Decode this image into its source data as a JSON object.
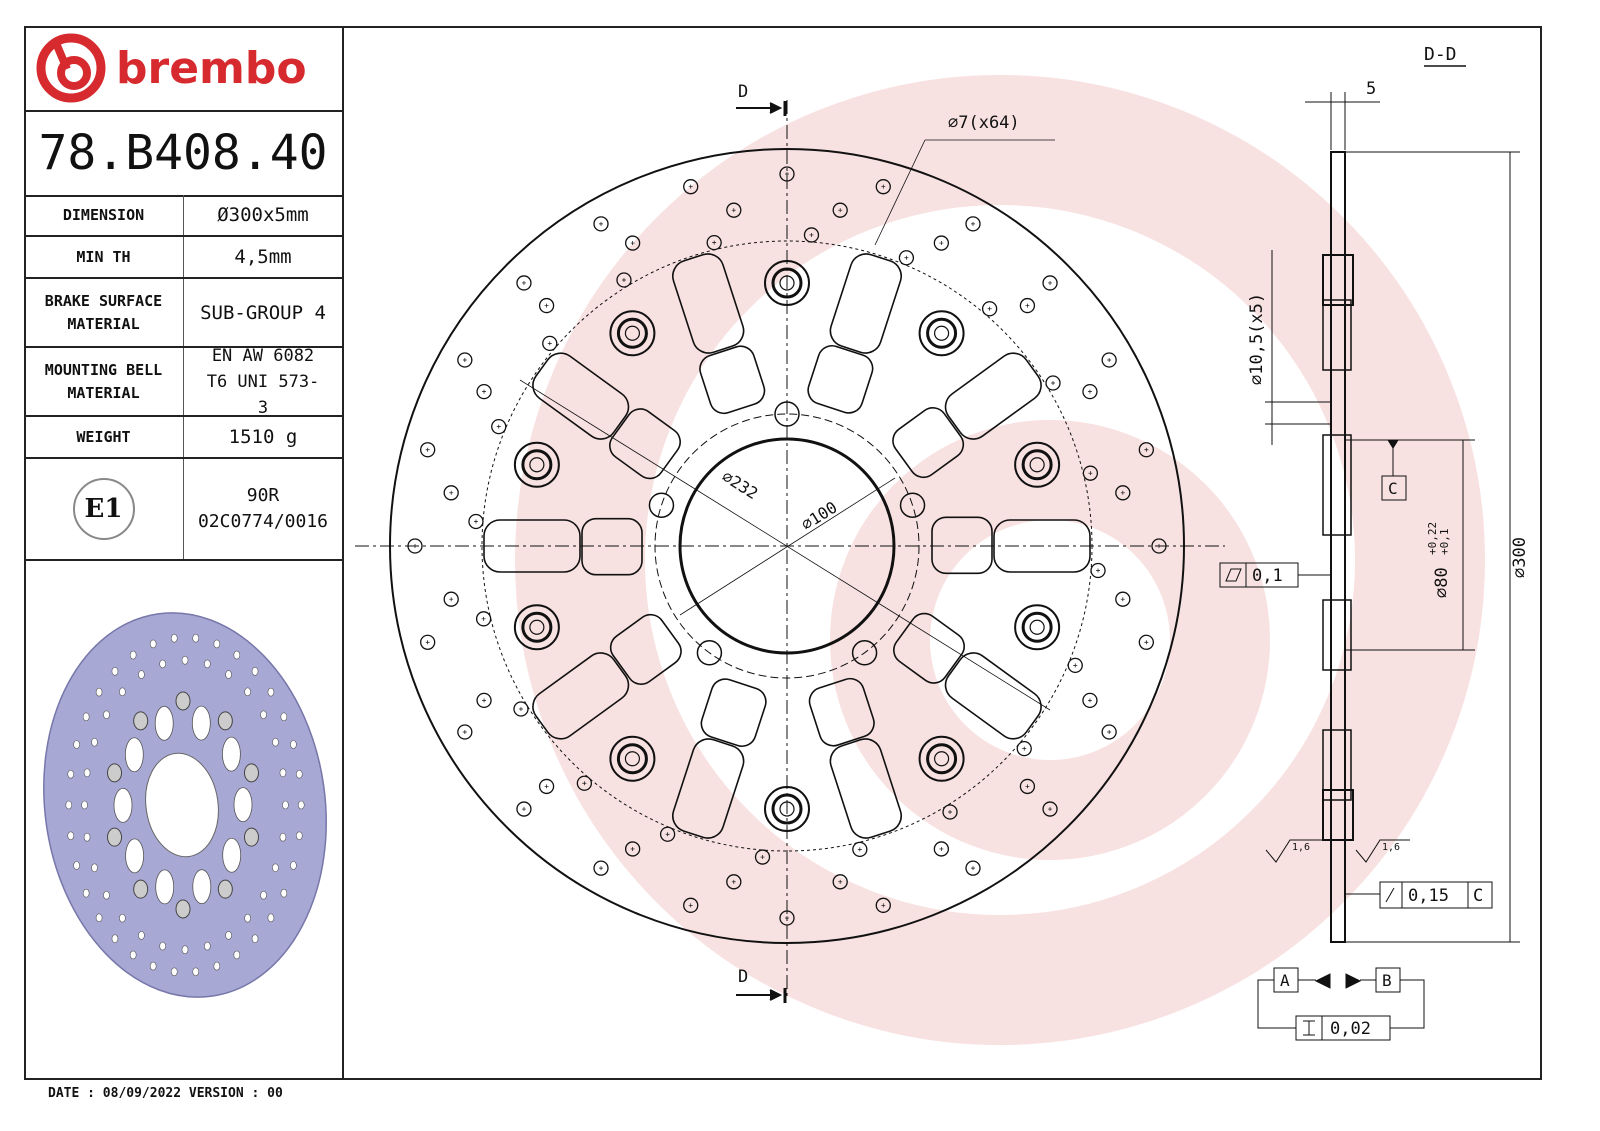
{
  "brand": {
    "name": "brembo",
    "color": "#d62a2e"
  },
  "part_number": "78.B408.40",
  "specs": [
    {
      "label": "DIMENSION",
      "value": "Ø300x5mm"
    },
    {
      "label": "MIN TH",
      "value": "4,5mm"
    },
    {
      "label": "BRAKE SURFACE MATERIAL",
      "value": "SUB-GROUP 4"
    },
    {
      "label": "MOUNTING BELL MATERIAL",
      "value": "EN AW 6082 T6 UNI 573-3"
    },
    {
      "label": "WEIGHT",
      "value": "1510 g"
    }
  ],
  "approval": {
    "mark": "E1",
    "line1": "90R",
    "line2": "02C0774/0016"
  },
  "footer": "DATE : 08/09/2022 VERSION : 00",
  "front_view": {
    "section_label": "D",
    "hole_note": "⌀7(x64)",
    "dia_232": "⌀232",
    "dia_100": "⌀100"
  },
  "section_view": {
    "title": "D-D",
    "thickness": "5",
    "bolt_holes": "⌀10,5(x5)",
    "datum_c": "C",
    "flatness": "0,1",
    "bore": "⌀80",
    "bore_tol_upper": "+0,22",
    "bore_tol_lower": "+0,1",
    "outer_dia": "⌀300",
    "roughness_left": "1,6",
    "roughness_right": "1,6",
    "runout": "0,15",
    "runout_datum": "C",
    "datum_a": "A",
    "datum_b": "B",
    "parallelism": "0,02"
  },
  "colors": {
    "line": "#111111",
    "render_fill": "#a8a8d4",
    "watermark": "#f7d6d6"
  }
}
